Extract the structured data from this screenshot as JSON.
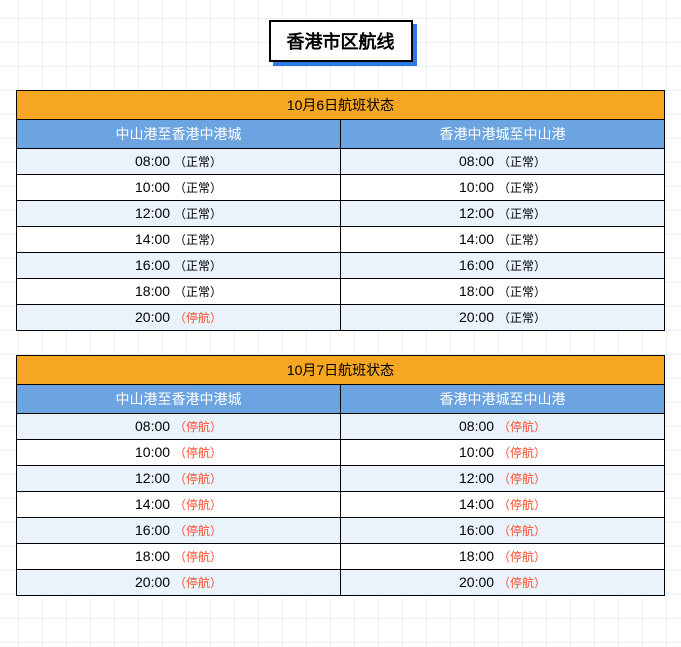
{
  "title": "香港市区航线",
  "colors": {
    "header_orange": "#f5a623",
    "subheader_blue": "#6ba4e0",
    "row_even": "#eaf3fb",
    "row_odd": "#ffffff",
    "border": "#000000",
    "title_shadow": "#2f79e6",
    "cancel_text": "#ff4d2e",
    "grid_line": "#e8f0fa"
  },
  "tables": [
    {
      "date_title": "10月6日航班状态",
      "columns": [
        "中山港至香港中港城",
        "香港中港城至中山港"
      ],
      "rows": [
        {
          "left_time": "08:00",
          "left_status": "（正常）",
          "left_cancel": false,
          "right_time": "08:00",
          "right_status": "（正常）",
          "right_cancel": false
        },
        {
          "left_time": "10:00",
          "left_status": "（正常）",
          "left_cancel": false,
          "right_time": "10:00",
          "right_status": "（正常）",
          "right_cancel": false
        },
        {
          "left_time": "12:00",
          "left_status": "（正常）",
          "left_cancel": false,
          "right_time": "12:00",
          "right_status": "（正常）",
          "right_cancel": false
        },
        {
          "left_time": "14:00",
          "left_status": "（正常）",
          "left_cancel": false,
          "right_time": "14:00",
          "right_status": "（正常）",
          "right_cancel": false
        },
        {
          "left_time": "16:00",
          "left_status": "（正常）",
          "left_cancel": false,
          "right_time": "16:00",
          "right_status": "（正常）",
          "right_cancel": false
        },
        {
          "left_time": "18:00",
          "left_status": "（正常）",
          "left_cancel": false,
          "right_time": "18:00",
          "right_status": "（正常）",
          "right_cancel": false
        },
        {
          "left_time": "20:00",
          "left_status": "（停航）",
          "left_cancel": true,
          "right_time": "20:00",
          "right_status": "（正常）",
          "right_cancel": false
        }
      ]
    },
    {
      "date_title": "10月7日航班状态",
      "columns": [
        "中山港至香港中港城",
        "香港中港城至中山港"
      ],
      "rows": [
        {
          "left_time": "08:00",
          "left_status": "（停航）",
          "left_cancel": true,
          "right_time": "08:00",
          "right_status": "（停航）",
          "right_cancel": true
        },
        {
          "left_time": "10:00",
          "left_status": "（停航）",
          "left_cancel": true,
          "right_time": "10:00",
          "right_status": "（停航）",
          "right_cancel": true
        },
        {
          "left_time": "12:00",
          "left_status": "（停航）",
          "left_cancel": true,
          "right_time": "12:00",
          "right_status": "（停航）",
          "right_cancel": true
        },
        {
          "left_time": "14:00",
          "left_status": "（停航）",
          "left_cancel": true,
          "right_time": "14:00",
          "right_status": "（停航）",
          "right_cancel": true
        },
        {
          "left_time": "16:00",
          "left_status": "（停航）",
          "left_cancel": true,
          "right_time": "16:00",
          "right_status": "（停航）",
          "right_cancel": true
        },
        {
          "left_time": "18:00",
          "left_status": "（停航）",
          "left_cancel": true,
          "right_time": "18:00",
          "right_status": "（停航）",
          "right_cancel": true
        },
        {
          "left_time": "20:00",
          "left_status": "（停航）",
          "left_cancel": true,
          "right_time": "20:00",
          "right_status": "（停航）",
          "right_cancel": true
        }
      ]
    }
  ]
}
